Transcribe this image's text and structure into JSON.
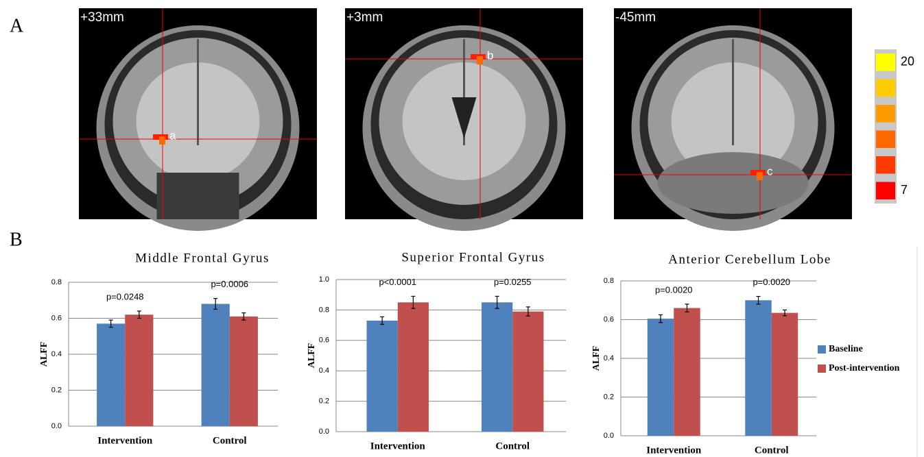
{
  "panel_labels": [
    "A",
    "B"
  ],
  "brain_slices": [
    {
      "label": "+33mm",
      "marker": "a"
    },
    {
      "label": "+3mm",
      "marker": "b"
    },
    {
      "label": "-45mm",
      "marker": "c"
    }
  ],
  "colorbar": {
    "lim": [
      7,
      20
    ],
    "ticks": [
      20,
      7
    ],
    "colors": [
      "#ff0000",
      "#ff3a00",
      "#ff6a00",
      "#ff9a00",
      "#ffcc00",
      "#ffff00"
    ]
  },
  "chart_data": [
    {
      "type": "bar",
      "title": "Middle Frontal Gyrus",
      "y_label": "ALFF",
      "categories": [
        "Intervention",
        "Control"
      ],
      "series": [
        {
          "name": "Baseline",
          "color": "#4f81bd",
          "values": [
            0.57,
            0.68
          ],
          "errors": [
            0.02,
            0.03
          ]
        },
        {
          "name": "Post-intervention",
          "color": "#c0504d",
          "values": [
            0.62,
            0.61
          ],
          "errors": [
            0.02,
            0.02
          ]
        }
      ],
      "annotations": [
        "p=0.0248",
        "p=0.0006"
      ],
      "ylim": [
        0,
        0.8
      ],
      "yticks": [
        {
          "value": 0,
          "label": "0.0"
        },
        0.2,
        0.4,
        0.6,
        0.8
      ],
      "grid": true
    },
    {
      "type": "bar",
      "title": "Superior Frontal Gyrus",
      "y_label": "ALFF",
      "categories": [
        "Intervention",
        "Control"
      ],
      "series": [
        {
          "name": "Baseline",
          "color": "#4f81bd",
          "values": [
            0.73,
            0.85
          ],
          "errors": [
            0.025,
            0.04
          ]
        },
        {
          "name": "Post-intervention",
          "color": "#c0504d",
          "values": [
            0.85,
            0.79
          ],
          "errors": [
            0.04,
            0.03
          ]
        }
      ],
      "annotations": [
        "p<0.0001",
        "p=0.0255"
      ],
      "ylim": [
        0,
        1
      ],
      "yticks": [
        {
          "value": 0,
          "label": "0.0"
        },
        0.2,
        0.4,
        0.6,
        0.8,
        {
          "value": 1,
          "label": "1.0"
        }
      ],
      "grid": true
    },
    {
      "type": "bar",
      "title": "Anterior Cerebellum Lobe",
      "y_label": "ALFF",
      "categories": [
        "Intervention",
        "Control"
      ],
      "series": [
        {
          "name": "Baseline",
          "color": "#4f81bd",
          "values": [
            0.605,
            0.7
          ],
          "errors": [
            0.02,
            0.02
          ]
        },
        {
          "name": "Post-intervention",
          "color": "#c0504d",
          "values": [
            0.66,
            0.635
          ],
          "errors": [
            0.02,
            0.015
          ]
        }
      ],
      "annotations": [
        "p=0.0020",
        "p=0.0020"
      ],
      "ylim": [
        0,
        0.8
      ],
      "yticks": [
        {
          "value": 0,
          "label": "0.0"
        },
        0.2,
        0.4,
        0.6,
        0.8
      ],
      "grid": true,
      "legend": "right"
    }
  ]
}
